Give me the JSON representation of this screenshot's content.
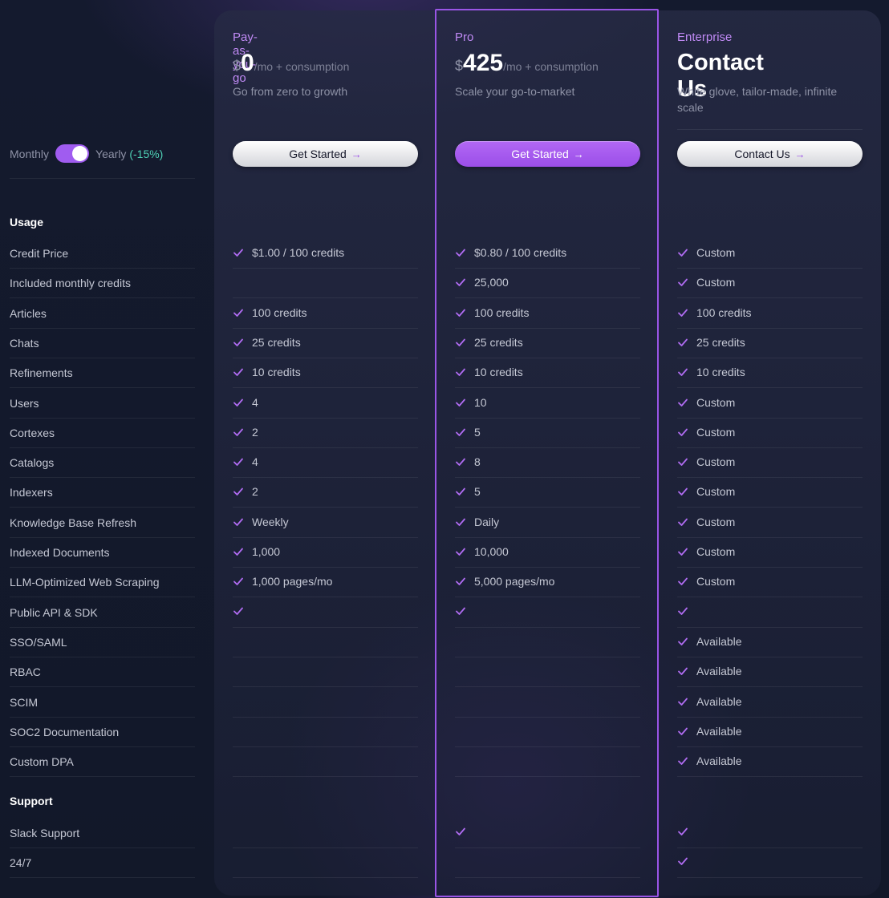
{
  "billing": {
    "monthly_label": "Monthly",
    "yearly_label": "Yearly",
    "discount_label": "(-15%)",
    "yearly_selected": true
  },
  "colors": {
    "accent": "#a05cf0",
    "discount": "#4fd1b5",
    "plan_name": "#c08af5"
  },
  "plans": [
    {
      "name": "Pay-as-you-go",
      "currency": "$",
      "price": "0",
      "price_suffix": "/mo + consumption",
      "description": "Go from zero to growth",
      "cta": "Get Started",
      "cta_icon": "arrow-right-icon"
    },
    {
      "name": "Pro",
      "currency": "$",
      "price": "425",
      "price_suffix": "/mo + consumption",
      "description": "Scale your go-to-market",
      "cta": "Get Started",
      "cta_icon": "arrow-right-icon",
      "highlighted": true
    },
    {
      "name": "Enterprise",
      "headline": "Contact Us",
      "description": "White glove, tailor-made, infinite scale",
      "cta": "Contact Us",
      "cta_icon": "arrow-right-icon"
    }
  ],
  "sections": [
    {
      "title": "Usage",
      "rows": [
        {
          "label": "Credit Price",
          "values": [
            {
              "check": true,
              "text": "$1.00 / 100 credits"
            },
            {
              "check": true,
              "text": "$0.80 / 100 credits"
            },
            {
              "check": true,
              "text": "Custom"
            }
          ]
        },
        {
          "label": "Included monthly credits",
          "values": [
            {
              "check": false,
              "text": ""
            },
            {
              "check": true,
              "text": "25,000"
            },
            {
              "check": true,
              "text": "Custom"
            }
          ]
        },
        {
          "label": "Articles",
          "values": [
            {
              "check": true,
              "text": "100 credits"
            },
            {
              "check": true,
              "text": "100 credits"
            },
            {
              "check": true,
              "text": "100 credits"
            }
          ]
        },
        {
          "label": "Chats",
          "values": [
            {
              "check": true,
              "text": "25 credits"
            },
            {
              "check": true,
              "text": "25 credits"
            },
            {
              "check": true,
              "text": "25 credits"
            }
          ]
        },
        {
          "label": "Refinements",
          "values": [
            {
              "check": true,
              "text": "10 credits"
            },
            {
              "check": true,
              "text": "10 credits"
            },
            {
              "check": true,
              "text": "10 credits"
            }
          ]
        },
        {
          "label": "Users",
          "values": [
            {
              "check": true,
              "text": "4"
            },
            {
              "check": true,
              "text": "10"
            },
            {
              "check": true,
              "text": "Custom"
            }
          ]
        },
        {
          "label": "Cortexes",
          "values": [
            {
              "check": true,
              "text": "2"
            },
            {
              "check": true,
              "text": "5"
            },
            {
              "check": true,
              "text": "Custom"
            }
          ]
        },
        {
          "label": "Catalogs",
          "values": [
            {
              "check": true,
              "text": "4"
            },
            {
              "check": true,
              "text": "8"
            },
            {
              "check": true,
              "text": "Custom"
            }
          ]
        },
        {
          "label": "Indexers",
          "values": [
            {
              "check": true,
              "text": "2"
            },
            {
              "check": true,
              "text": "5"
            },
            {
              "check": true,
              "text": "Custom"
            }
          ]
        },
        {
          "label": "Knowledge Base Refresh",
          "values": [
            {
              "check": true,
              "text": "Weekly"
            },
            {
              "check": true,
              "text": "Daily"
            },
            {
              "check": true,
              "text": "Custom"
            }
          ]
        },
        {
          "label": "Indexed Documents",
          "values": [
            {
              "check": true,
              "text": "1,000"
            },
            {
              "check": true,
              "text": "10,000"
            },
            {
              "check": true,
              "text": "Custom"
            }
          ]
        },
        {
          "label": "LLM-Optimized Web Scraping",
          "values": [
            {
              "check": true,
              "text": "1,000 pages/mo"
            },
            {
              "check": true,
              "text": "5,000 pages/mo"
            },
            {
              "check": true,
              "text": "Custom"
            }
          ]
        },
        {
          "label": "Public API & SDK",
          "values": [
            {
              "check": true,
              "text": ""
            },
            {
              "check": true,
              "text": ""
            },
            {
              "check": true,
              "text": ""
            }
          ]
        },
        {
          "label": "SSO/SAML",
          "values": [
            {
              "check": false,
              "text": ""
            },
            {
              "check": false,
              "text": ""
            },
            {
              "check": true,
              "text": "Available"
            }
          ]
        },
        {
          "label": "RBAC",
          "values": [
            {
              "check": false,
              "text": ""
            },
            {
              "check": false,
              "text": ""
            },
            {
              "check": true,
              "text": "Available"
            }
          ]
        },
        {
          "label": "SCIM",
          "values": [
            {
              "check": false,
              "text": ""
            },
            {
              "check": false,
              "text": ""
            },
            {
              "check": true,
              "text": "Available"
            }
          ]
        },
        {
          "label": "SOC2 Documentation",
          "values": [
            {
              "check": false,
              "text": ""
            },
            {
              "check": false,
              "text": ""
            },
            {
              "check": true,
              "text": "Available"
            }
          ]
        },
        {
          "label": "Custom DPA",
          "values": [
            {
              "check": false,
              "text": ""
            },
            {
              "check": false,
              "text": ""
            },
            {
              "check": true,
              "text": "Available"
            }
          ]
        }
      ]
    },
    {
      "title": "Support",
      "rows": [
        {
          "label": "Slack Support",
          "values": [
            {
              "check": false,
              "text": ""
            },
            {
              "check": true,
              "text": ""
            },
            {
              "check": true,
              "text": ""
            }
          ]
        },
        {
          "label": "24/7",
          "values": [
            {
              "check": false,
              "text": ""
            },
            {
              "check": false,
              "text": ""
            },
            {
              "check": true,
              "text": ""
            }
          ]
        }
      ]
    }
  ]
}
